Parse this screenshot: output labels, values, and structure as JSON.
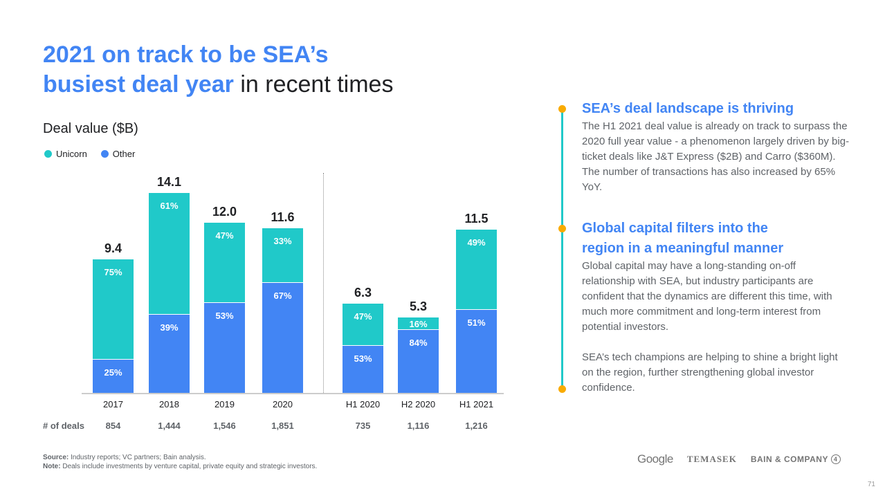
{
  "title": {
    "line1": "2021 on track to be SEA’s",
    "line2_bold": "busiest deal year",
    "line2_rest": " in recent times"
  },
  "chart_data": {
    "type": "bar",
    "stacked": true,
    "title": "Deal value ($B)",
    "ylabel": "Deal value ($B)",
    "legend": [
      {
        "name": "Unicorn",
        "color": "#20C9C9"
      },
      {
        "name": "Other",
        "color": "#4285F4"
      }
    ],
    "legend_position": "top-left",
    "categories": [
      "2017",
      "2018",
      "2019",
      "2020",
      "H1 2020",
      "H2 2020",
      "H1 2021"
    ],
    "totals": [
      9.4,
      14.1,
      12.0,
      11.6,
      6.3,
      5.3,
      11.5
    ],
    "total_labels": [
      "9.4",
      "14.1",
      "12.0",
      "11.6",
      "6.3",
      "5.3",
      "11.5"
    ],
    "series": [
      {
        "name": "Other",
        "values_pct": [
          25,
          39,
          53,
          67,
          53,
          84,
          51
        ],
        "labels": [
          "25%",
          "39%",
          "53%",
          "67%",
          "53%",
          "84%",
          "51%"
        ]
      },
      {
        "name": "Unicorn",
        "values_pct": [
          75,
          61,
          47,
          33,
          47,
          16,
          49
        ],
        "labels": [
          "75%",
          "61%",
          "47%",
          "33%",
          "47%",
          "16%",
          "49%"
        ]
      }
    ],
    "deals_label": "# of deals",
    "deals": [
      "854",
      "1,444",
      "1,546",
      "1,851",
      "735",
      "1,116",
      "1,216"
    ],
    "ylim": [
      0,
      15
    ],
    "grid": false
  },
  "sections": [
    {
      "heading": "SEA’s deal landscape is thriving",
      "body": "The H1 2021 deal value is already on track to surpass the 2020 full year value - a phenomenon largely driven by big-ticket deals like J&T Express ($2B) and Carro ($360M). The number of transactions has also increased by 65% YoY."
    },
    {
      "heading": "Global capital filters into the region in a meaningful manner",
      "body": "Global capital may have a long-standing on-off relationship with SEA, but industry participants are confident that the dynamics are different this time, with much more commitment and long-term interest from potential investors.",
      "body2": "SEA’s tech champions are helping to shine a bright light on the region, further strengthening global investor confidence."
    }
  ],
  "footer": {
    "source_label": "Source:",
    "source": " Industry reports; VC partners; Bain analysis.",
    "note_label": "Note:",
    "note": " Deals include investments by venture capital, private equity and strategic investors."
  },
  "logos": [
    "Google",
    "TEMASEK",
    "BAIN & COMPANY"
  ],
  "page_number": "71"
}
